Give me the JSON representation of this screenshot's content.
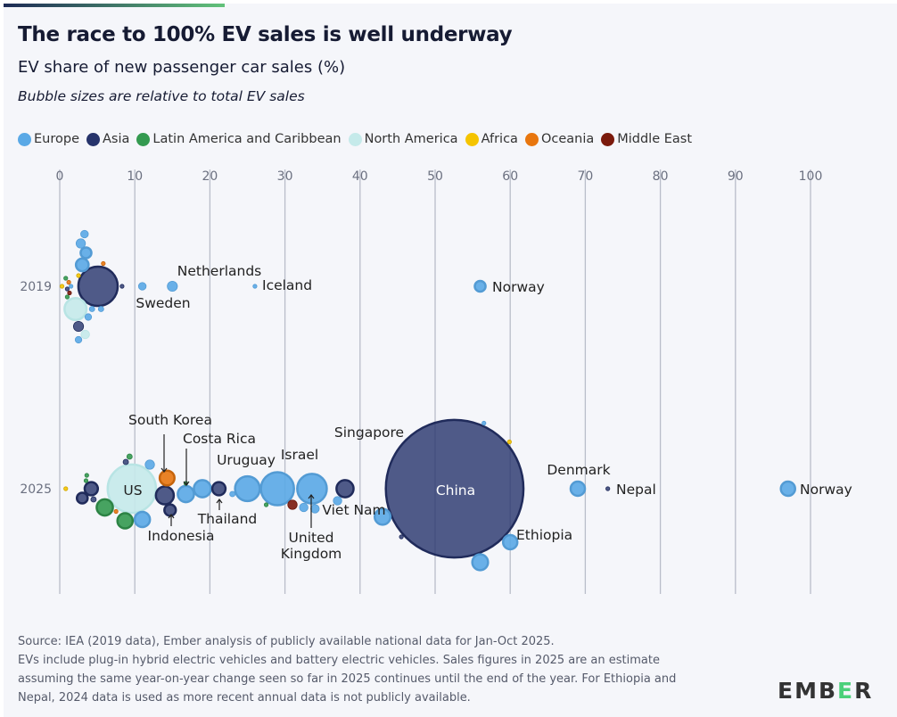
{
  "title": "The race to 100% EV sales is well underway",
  "subtitle": "EV share of new passenger car sales (%)",
  "note": "Bubble sizes are relative to total EV sales",
  "legend": [
    {
      "label": "Europe",
      "color": "#5aa9e6"
    },
    {
      "label": "Asia",
      "color": "#26336b"
    },
    {
      "label": "Latin America and Caribbean",
      "color": "#349a50"
    },
    {
      "label": "North America",
      "color": "#c5eaea"
    },
    {
      "label": "Africa",
      "color": "#f5c400"
    },
    {
      "label": "Oceania",
      "color": "#e8760e"
    },
    {
      "label": "Middle East",
      "color": "#7b1a0c"
    }
  ],
  "chart_data": {
    "type": "scatter",
    "subtype": "beeswarm bubble",
    "title": "The race to 100% EV sales is well underway",
    "xlabel": "EV share of new passenger car sales (%)",
    "xlim": [
      0,
      100
    ],
    "xticks": [
      "0",
      "10",
      "20",
      "30",
      "40",
      "50",
      "60",
      "70",
      "80",
      "90",
      "100"
    ],
    "rows": [
      "2019",
      "2025"
    ],
    "grid": true,
    "legend_position": "top",
    "size_encoding": "total EV sales (relative)",
    "points": [
      {
        "year": "2019",
        "label": "",
        "region": "Asia",
        "share": 5.1,
        "sales": 1.06
      },
      {
        "year": "2019",
        "label": "",
        "region": "North America",
        "share": 2.1,
        "sales": 0.33
      },
      {
        "year": "2019",
        "label": "Norway",
        "region": "Europe",
        "share": 56,
        "sales": 0.08
      },
      {
        "year": "2019",
        "label": "Iceland",
        "region": "Europe",
        "share": 26,
        "sales": 0.005
      },
      {
        "year": "2019",
        "label": "Netherlands",
        "region": "Europe",
        "share": 15,
        "sales": 0.07
      },
      {
        "year": "2019",
        "label": "Sweden",
        "region": "Europe",
        "share": 11,
        "sales": 0.04
      },
      {
        "year": "2019",
        "label": "",
        "region": "Asia",
        "share": 8.3,
        "sales": 0.005
      },
      {
        "year": "2019",
        "label": "",
        "region": "Europe",
        "share": 3.0,
        "sales": 0.11
      },
      {
        "year": "2019",
        "label": "",
        "region": "Europe",
        "share": 2.8,
        "sales": 0.06
      },
      {
        "year": "2019",
        "label": "",
        "region": "Europe",
        "share": 3.3,
        "sales": 0.04
      },
      {
        "year": "2019",
        "label": "",
        "region": "Europe",
        "share": 2.5,
        "sales": 0.03
      },
      {
        "year": "2019",
        "label": "",
        "region": "Europe",
        "share": 3.8,
        "sales": 0.03
      },
      {
        "year": "2019",
        "label": "",
        "region": "Europe",
        "share": 4.3,
        "sales": 0.02
      },
      {
        "year": "2019",
        "label": "",
        "region": "Europe",
        "share": 5.5,
        "sales": 0.02
      },
      {
        "year": "2019",
        "label": "",
        "region": "Europe",
        "share": 3.5,
        "sales": 0.08
      },
      {
        "year": "2019",
        "label": "",
        "region": "Europe",
        "share": 1.5,
        "sales": 0.01
      },
      {
        "year": "2019",
        "label": "",
        "region": "Asia",
        "share": 2.5,
        "sales": 0.07
      },
      {
        "year": "2019",
        "label": "",
        "region": "Asia",
        "share": 1.0,
        "sales": 0.01
      },
      {
        "year": "2019",
        "label": "",
        "region": "North America",
        "share": 3.4,
        "sales": 0.05
      },
      {
        "year": "2019",
        "label": "",
        "region": "Oceania",
        "share": 1.2,
        "sales": 0.01
      },
      {
        "year": "2019",
        "label": "",
        "region": "Oceania",
        "share": 5.8,
        "sales": 0.006
      },
      {
        "year": "2019",
        "label": "",
        "region": "Middle East",
        "share": 1.3,
        "sales": 0.01
      },
      {
        "year": "2019",
        "label": "",
        "region": "Latin America and Caribbean",
        "share": 0.8,
        "sales": 0.004
      },
      {
        "year": "2019",
        "label": "",
        "region": "Latin America and Caribbean",
        "share": 1.0,
        "sales": 0.004
      },
      {
        "year": "2019",
        "label": "",
        "region": "Africa",
        "share": 0.3,
        "sales": 0.002
      },
      {
        "year": "2019",
        "label": "",
        "region": "Africa",
        "share": 2.5,
        "sales": 0.002
      },
      {
        "year": "2025",
        "label": "China",
        "region": "Asia",
        "share": 52.6,
        "sales": 13
      },
      {
        "year": "2025",
        "label": "US",
        "region": "North America",
        "share": 9.6,
        "sales": 1.6
      },
      {
        "year": "2025",
        "label": "Norway",
        "region": "Europe",
        "share": 97,
        "sales": 0.14
      },
      {
        "year": "2025",
        "label": "Nepal",
        "region": "Asia",
        "share": 73,
        "sales": 0.01
      },
      {
        "year": "2025",
        "label": "Denmark",
        "region": "Europe",
        "share": 69,
        "sales": 0.14
      },
      {
        "year": "2025",
        "label": "Ethiopia",
        "region": "Africa",
        "share": 59.9,
        "sales": 0.005
      },
      {
        "year": "2025",
        "label": "Singapore",
        "region": "Asia",
        "share": 45.5,
        "sales": 0.01
      },
      {
        "year": "2025",
        "label": "Viet Nam",
        "region": "Asia",
        "share": 38,
        "sales": 0.2
      },
      {
        "year": "2025",
        "label": "United Kingdom",
        "region": "Europe",
        "share": 33.6,
        "sales": 0.6
      },
      {
        "year": "2025",
        "label": "Israel",
        "region": "Middle East",
        "share": 31,
        "sales": 0.06
      },
      {
        "year": "2025",
        "label": "Uruguay",
        "region": "Latin America and Caribbean",
        "share": 27.5,
        "sales": 0.003
      },
      {
        "year": "2025",
        "label": "Thailand",
        "region": "Asia",
        "share": 21.2,
        "sales": 0.12
      },
      {
        "year": "2025",
        "label": "Costa Rica",
        "region": "Latin America and Caribbean",
        "share": 16.8,
        "sales": 0.005
      },
      {
        "year": "2025",
        "label": "Indonesia",
        "region": "Asia",
        "share": 14.7,
        "sales": 0.09
      },
      {
        "year": "2025",
        "label": "South Korea",
        "region": "Asia",
        "share": 14,
        "sales": 0.22
      },
      {
        "year": "2025",
        "label": "",
        "region": "Europe",
        "share": 29,
        "sales": 0.75
      },
      {
        "year": "2025",
        "label": "",
        "region": "Europe",
        "share": 25,
        "sales": 0.42
      },
      {
        "year": "2025",
        "label": "",
        "region": "Europe",
        "share": 19,
        "sales": 0.2
      },
      {
        "year": "2025",
        "label": "",
        "region": "Europe",
        "share": 16.8,
        "sales": 0.18
      },
      {
        "year": "2025",
        "label": "",
        "region": "Europe",
        "share": 11,
        "sales": 0.16
      },
      {
        "year": "2025",
        "label": "",
        "region": "Europe",
        "share": 56,
        "sales": 0.17
      },
      {
        "year": "2025",
        "label": "",
        "region": "Europe",
        "share": 60,
        "sales": 0.14
      },
      {
        "year": "2025",
        "label": "",
        "region": "Europe",
        "share": 43,
        "sales": 0.17
      },
      {
        "year": "2025",
        "label": "",
        "region": "Europe",
        "share": 37,
        "sales": 0.05
      },
      {
        "year": "2025",
        "label": "",
        "region": "Europe",
        "share": 32.5,
        "sales": 0.05
      },
      {
        "year": "2025",
        "label": "",
        "region": "Europe",
        "share": 34,
        "sales": 0.05
      },
      {
        "year": "2025",
        "label": "",
        "region": "Europe",
        "share": 56.5,
        "sales": 0.01
      },
      {
        "year": "2025",
        "label": "",
        "region": "Europe",
        "share": 12,
        "sales": 0.06
      },
      {
        "year": "2025",
        "label": "",
        "region": "Europe",
        "share": 23,
        "sales": 0.02
      },
      {
        "year": "2025",
        "label": "",
        "region": "Asia",
        "share": 3.0,
        "sales": 0.08
      },
      {
        "year": "2025",
        "label": "",
        "region": "Asia",
        "share": 4.2,
        "sales": 0.12
      },
      {
        "year": "2025",
        "label": "",
        "region": "Asia",
        "share": 4.5,
        "sales": 0.02
      },
      {
        "year": "2025",
        "label": "",
        "region": "Asia",
        "share": 8.8,
        "sales": 0.02
      },
      {
        "year": "2025",
        "label": "",
        "region": "Oceania",
        "share": 14.3,
        "sales": 0.15
      },
      {
        "year": "2025",
        "label": "",
        "region": "Oceania",
        "share": 7.5,
        "sales": 0.01
      },
      {
        "year": "2025",
        "label": "",
        "region": "Latin America and Caribbean",
        "share": 6,
        "sales": 0.18
      },
      {
        "year": "2025",
        "label": "",
        "region": "Latin America and Caribbean",
        "share": 8.7,
        "sales": 0.16
      },
      {
        "year": "2025",
        "label": "",
        "region": "Latin America and Caribbean",
        "share": 9.3,
        "sales": 0.02
      },
      {
        "year": "2025",
        "label": "",
        "region": "Latin America and Caribbean",
        "share": 3.5,
        "sales": 0.008
      },
      {
        "year": "2025",
        "label": "",
        "region": "Latin America and Caribbean",
        "share": 3.6,
        "sales": 0.005
      },
      {
        "year": "2025",
        "label": "",
        "region": "Africa",
        "share": 0.8,
        "sales": 0.002
      }
    ]
  },
  "footer": {
    "lines": [
      "Source: IEA (2019 data), Ember analysis of publicly available national data for Jan-Oct 2025.",
      "EVs include plug-in hybrid electric vehicles and battery electric vehicles. Sales figures in 2025 are an estimate",
      "assuming the same year-on-year change seen so far in 2025 continues until the end of the year. For Ethiopia and",
      "Nepal, 2024 data is used as more recent annual data is not publicly available."
    ]
  },
  "logo": {
    "text": "EMBER"
  }
}
